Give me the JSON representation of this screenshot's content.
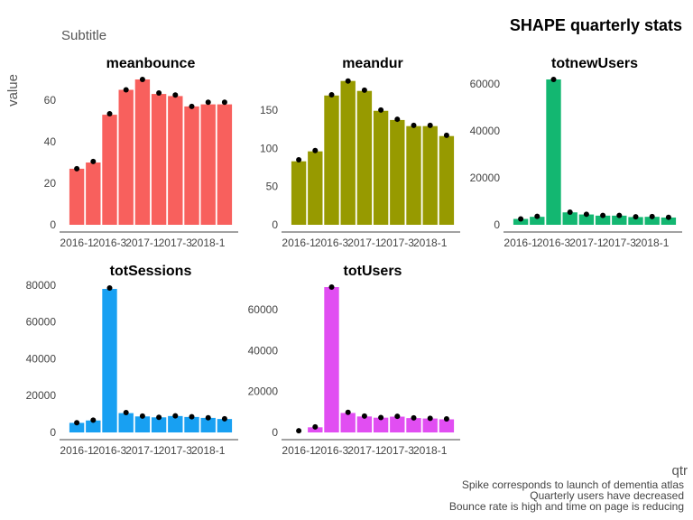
{
  "chart_data": {
    "type": "bar",
    "title": "SHAPE quarterly stats",
    "subtitle": "Subtitle",
    "xlabel": "qtr",
    "ylabel": "value",
    "categories": [
      "2016-1",
      "2016-2",
      "2016-3",
      "2016-4",
      "2017-1",
      "2017-2",
      "2017-3",
      "2017-4",
      "2018-1",
      "2018-2"
    ],
    "x_tick_labels": [
      "2016-1",
      "2016-3",
      "2017-1",
      "2017-3",
      "2018-1"
    ],
    "caption": [
      "Spike corresponds to launch of dementia atlas",
      "Quarterly users have decreased",
      "Bounce rate is high and time on page is reducing"
    ],
    "grid": false,
    "legend": "none",
    "facets": [
      {
        "name": "meanbounce",
        "color": "#f8605d",
        "ylim": [
          0,
          70
        ],
        "yticks": [
          0,
          20,
          40,
          60
        ],
        "values": [
          27,
          30,
          53,
          65,
          70,
          63,
          62,
          57,
          58,
          58
        ],
        "points": [
          27,
          30.5,
          53.5,
          65,
          70,
          63.5,
          62.5,
          57,
          59,
          59
        ]
      },
      {
        "name": "meandur",
        "color": "#979a00",
        "ylim": [
          0,
          190
        ],
        "yticks": [
          0,
          50,
          100,
          150
        ],
        "values": [
          83,
          96,
          169,
          188,
          175,
          149,
          137,
          129,
          129,
          116
        ],
        "points": [
          85,
          97,
          170,
          188,
          176,
          150,
          138,
          130,
          130,
          117
        ]
      },
      {
        "name": "totnewUsers",
        "color": "#13b771",
        "ylim": [
          0,
          62000
        ],
        "yticks": [
          0,
          20000,
          40000,
          60000
        ],
        "values": [
          2500,
          3400,
          62000,
          5300,
          4400,
          3900,
          3900,
          3300,
          3400,
          3100
        ],
        "points": [
          2500,
          3600,
          62000,
          5400,
          4500,
          4000,
          4000,
          3400,
          3500,
          3200
        ]
      },
      {
        "name": "totSessions",
        "color": "#18a0f2",
        "ylim": [
          0,
          79000
        ],
        "yticks": [
          0,
          20000,
          40000,
          60000,
          80000
        ],
        "values": [
          5200,
          6500,
          78000,
          10500,
          8700,
          8200,
          8900,
          8400,
          7900,
          7300
        ],
        "points": [
          5300,
          6700,
          78500,
          10800,
          8900,
          8200,
          9000,
          8500,
          8000,
          7400
        ]
      },
      {
        "name": "totUsers",
        "color": "#e14ef2",
        "ylim": [
          0,
          71000
        ],
        "yticks": [
          0,
          20000,
          40000,
          60000
        ],
        "values": [
          0,
          2500,
          71000,
          9500,
          7800,
          7200,
          7700,
          7000,
          6800,
          6400
        ],
        "points": [
          800,
          2700,
          71000,
          9800,
          8000,
          7300,
          7900,
          7100,
          6900,
          6600
        ]
      }
    ]
  }
}
